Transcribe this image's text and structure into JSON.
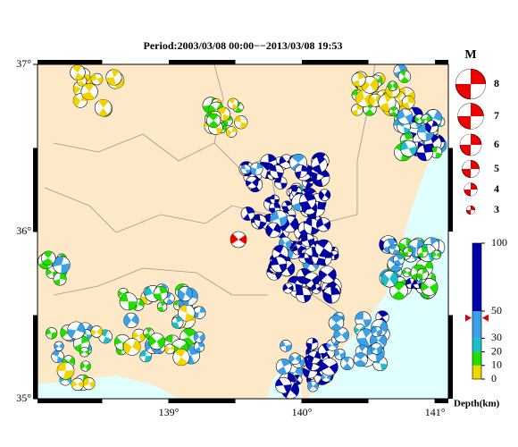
{
  "title": "Period:2003/03/08 00:00−−2013/03/08 19:53",
  "map": {
    "xlim": [
      138.014,
      141.1
    ],
    "ylim": [
      35,
      37
    ],
    "lon_ticks": [
      {
        "value": 139,
        "label": "139°"
      },
      {
        "value": 140,
        "label": "140°"
      },
      {
        "value": 141,
        "label": "141°"
      }
    ],
    "lat_ticks": [
      {
        "value": 35,
        "label": "35°"
      },
      {
        "value": 36,
        "label": "36°"
      },
      {
        "value": 37,
        "label": "37°"
      }
    ],
    "land_color": "#fde8c8",
    "sea_color": "#e0ffff"
  },
  "magnitude_legend": {
    "title": "M",
    "values": [
      8,
      7,
      6,
      5,
      4,
      3
    ],
    "color": "#ee0000"
  },
  "depth_legend": {
    "title": "Depth(km)",
    "ticks": [
      0,
      10,
      20,
      30,
      50,
      100
    ],
    "colors": [
      "#f2d500",
      "#22dd00",
      "#1bbfc8",
      "#3aa0e8",
      "#0000aa"
    ],
    "marker": 45
  }
}
